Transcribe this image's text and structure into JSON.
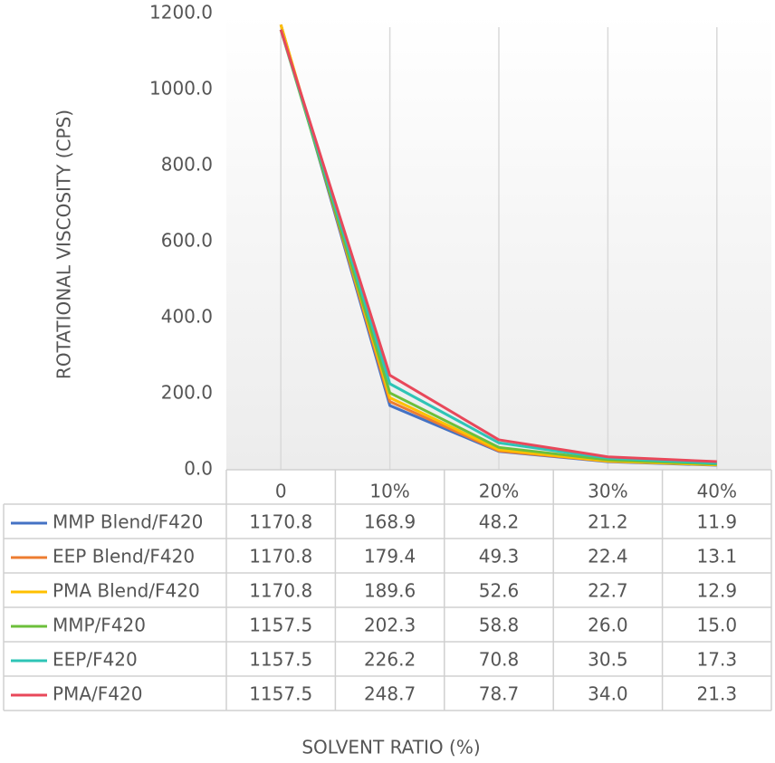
{
  "chart_data": {
    "type": "line",
    "x_label": "SOLVENT RATIO (%)",
    "y_label": "ROTATIONAL VISCOSITY (CPS)",
    "categories": [
      "0",
      "10%",
      "20%",
      "30%",
      "40%"
    ],
    "ylim": [
      0,
      1200
    ],
    "yticks": [
      {
        "value": 0,
        "label": "0.0"
      },
      {
        "value": 200,
        "label": "200.0"
      },
      {
        "value": 400,
        "label": "400.0"
      },
      {
        "value": 600,
        "label": "600.0"
      },
      {
        "value": 800,
        "label": "800.0"
      },
      {
        "value": 1000,
        "label": "1000.0"
      },
      {
        "value": 1200,
        "label": "1200.0"
      }
    ],
    "series": [
      {
        "name": "MMP Blend/F420",
        "color": "#4472c4",
        "values": [
          1170.8,
          168.9,
          48.2,
          21.2,
          11.9
        ],
        "value_labels": [
          "1170.8",
          "168.9",
          "48.2",
          "21.2",
          "11.9"
        ]
      },
      {
        "name": "EEP Blend/F420",
        "color": "#ed7d31",
        "values": [
          1170.8,
          179.4,
          49.3,
          22.4,
          13.1
        ],
        "value_labels": [
          "1170.8",
          "179.4",
          "49.3",
          "22.4",
          "13.1"
        ]
      },
      {
        "name": "PMA Blend/F420",
        "color": "#ffc000",
        "values": [
          1170.8,
          189.6,
          52.6,
          22.7,
          12.9
        ],
        "value_labels": [
          "1170.8",
          "189.6",
          "52.6",
          "22.7",
          "12.9"
        ]
      },
      {
        "name": "MMP/F420",
        "color": "#6cbf3b",
        "values": [
          1157.5,
          202.3,
          58.8,
          26,
          15
        ],
        "value_labels": [
          "1157.5",
          "202.3",
          "58.8",
          "26.0",
          "15.0"
        ]
      },
      {
        "name": "EEP/F420",
        "color": "#2ec4b6",
        "values": [
          1157.5,
          226.2,
          70.8,
          30.5,
          17.3
        ],
        "value_labels": [
          "1157.5",
          "226.2",
          "70.8",
          "30.5",
          "17.3"
        ]
      },
      {
        "name": "PMA/F420",
        "color": "#e8485a",
        "values": [
          1157.5,
          248.7,
          78.7,
          34,
          21.3
        ],
        "value_labels": [
          "1157.5",
          "248.7",
          "78.7",
          "34.0",
          "21.3"
        ]
      }
    ]
  }
}
